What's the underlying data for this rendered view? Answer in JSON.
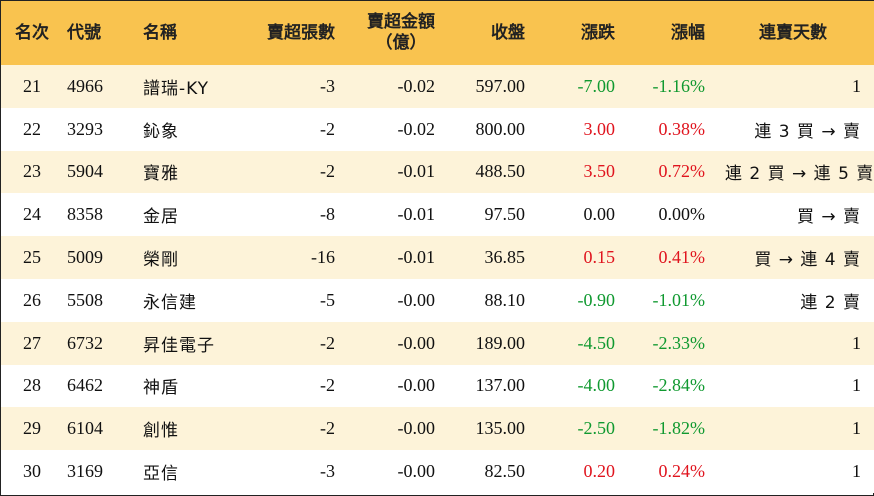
{
  "headers": {
    "rank": "名次",
    "code": "代號",
    "name": "名稱",
    "sell_lots": "賣超張數",
    "sell_amount_line1": "賣超金額",
    "sell_amount_line2": "（億）",
    "close": "收盤",
    "change": "漲跌",
    "change_pct": "漲幅",
    "streak": "連賣天數"
  },
  "rows": [
    {
      "rank": "21",
      "code": "4966",
      "name": "譜瑞-KY",
      "sell_lots": "-3",
      "sell_amount": "-0.02",
      "close": "597.00",
      "change": "-7.00",
      "change_pct": "-1.16%",
      "trend": "down",
      "streak": "1"
    },
    {
      "rank": "22",
      "code": "3293",
      "name": "鈊象",
      "sell_lots": "-2",
      "sell_amount": "-0.02",
      "close": "800.00",
      "change": "3.00",
      "change_pct": "0.38%",
      "trend": "up",
      "streak": "連 3 買 → 賣"
    },
    {
      "rank": "23",
      "code": "5904",
      "name": "寶雅",
      "sell_lots": "-2",
      "sell_amount": "-0.01",
      "close": "488.50",
      "change": "3.50",
      "change_pct": "0.72%",
      "trend": "up",
      "streak": "連 2 買 → 連 5 賣"
    },
    {
      "rank": "24",
      "code": "8358",
      "name": "金居",
      "sell_lots": "-8",
      "sell_amount": "-0.01",
      "close": "97.50",
      "change": "0.00",
      "change_pct": "0.00%",
      "trend": "flat",
      "streak": "買 → 賣"
    },
    {
      "rank": "25",
      "code": "5009",
      "name": "榮剛",
      "sell_lots": "-16",
      "sell_amount": "-0.01",
      "close": "36.85",
      "change": "0.15",
      "change_pct": "0.41%",
      "trend": "up",
      "streak": "買 → 連 4 賣"
    },
    {
      "rank": "26",
      "code": "5508",
      "name": "永信建",
      "sell_lots": "-5",
      "sell_amount": "-0.00",
      "close": "88.10",
      "change": "-0.90",
      "change_pct": "-1.01%",
      "trend": "down",
      "streak": "連 2 賣"
    },
    {
      "rank": "27",
      "code": "6732",
      "name": "昇佳電子",
      "sell_lots": "-2",
      "sell_amount": "-0.00",
      "close": "189.00",
      "change": "-4.50",
      "change_pct": "-2.33%",
      "trend": "down",
      "streak": "1"
    },
    {
      "rank": "28",
      "code": "6462",
      "name": "神盾",
      "sell_lots": "-2",
      "sell_amount": "-0.00",
      "close": "137.00",
      "change": "-4.00",
      "change_pct": "-2.84%",
      "trend": "down",
      "streak": "1"
    },
    {
      "rank": "29",
      "code": "6104",
      "name": "創惟",
      "sell_lots": "-2",
      "sell_amount": "-0.00",
      "close": "135.00",
      "change": "-2.50",
      "change_pct": "-1.82%",
      "trend": "down",
      "streak": "1"
    },
    {
      "rank": "30",
      "code": "3169",
      "name": "亞信",
      "sell_lots": "-3",
      "sell_amount": "-0.00",
      "close": "82.50",
      "change": "0.20",
      "change_pct": "0.24%",
      "trend": "up",
      "streak": "1"
    }
  ],
  "colors": {
    "header_bg": "#f9c34f",
    "odd_row_bg": "#fdf3d9",
    "up": "#e0141e",
    "down": "#109930"
  }
}
